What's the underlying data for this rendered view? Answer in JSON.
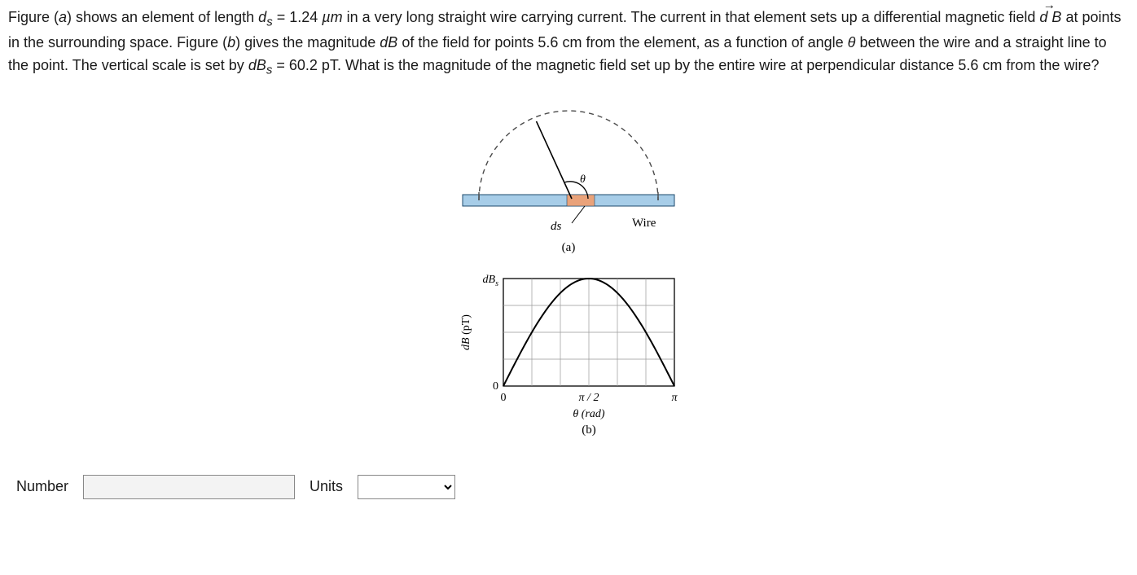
{
  "problem": {
    "ds_label": "d",
    "ds_sub": "s",
    "ds_value": "1.24",
    "ds_unit": "µm",
    "r_value": "5.6",
    "r_unit": "cm",
    "dBs_label": "dB",
    "dBs_sub": "s",
    "dBs_value": "60.2",
    "dBs_unit": "pT",
    "text_1": "Figure (",
    "text_2": "a",
    "text_3": ") shows an element of length ",
    "text_4": " = ",
    "text_5": " in a very long straight wire carrying current. The current in that element sets up a differential magnetic field ",
    "text_6": " at points in the surrounding space. Figure (",
    "text_7": "b",
    "text_8": ") gives the magnitude ",
    "text_9": "dB",
    "text_10": " of the field for points ",
    "text_11": " from the element, as a function of angle ",
    "theta": "θ",
    "text_12": " between the wire and a straight line to the point. The vertical scale is set by ",
    "text_13": " = ",
    "text_14": ". What is the magnitude of the magnetic field set up by the entire wire at perpendicular distance ",
    "text_15": " from the wire?",
    "dB_vec": "d B"
  },
  "figA": {
    "ds_label": "ds",
    "theta_label": "θ",
    "wire_label": "Wire",
    "caption": "(a)",
    "wire_fill": "#a7cde8",
    "wire_stroke": "#1e4a6d",
    "element_fill": "#e9a27a",
    "arc_stroke": "#4a4a4a"
  },
  "figB": {
    "ylabel_html": "dB (pT)",
    "ytick_label": "dBₛ",
    "xlabel": "θ  (rad)",
    "caption": "(b)",
    "xtick_0": "0",
    "xtick_mid": "π / 2",
    "xtick_end": "π",
    "grid_color": "#999999",
    "axis_color": "#000000",
    "curve_color": "#000000",
    "background": "#ffffff",
    "xlim": [
      0,
      3.14159
    ],
    "ylim": [
      0,
      60.2
    ],
    "n_ygrid": 4,
    "n_xgrid": 6
  },
  "answer": {
    "number_label": "Number",
    "units_label": "Units",
    "number_value": "",
    "units_placeholder": " "
  }
}
